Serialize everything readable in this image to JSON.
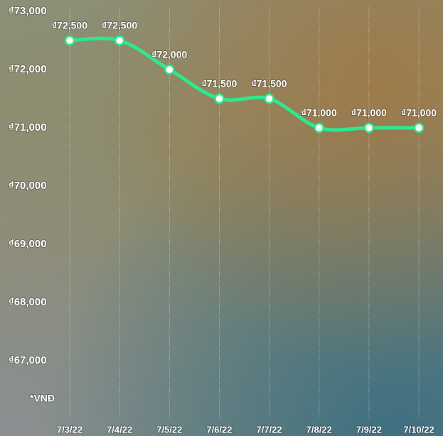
{
  "chart_data": {
    "type": "line",
    "categories": [
      "7/3/22",
      "7/4/22",
      "7/5/22",
      "7/6/22",
      "7/7/22",
      "7/8/22",
      "7/9/22",
      "7/10/22"
    ],
    "values": [
      72500,
      72500,
      72000,
      71500,
      71500,
      71000,
      71000,
      71000
    ],
    "value_labels": [
      "₫72,500",
      "₫72,500",
      "₫72,000",
      "₫71,500",
      "₫71,500",
      "₫71,000",
      "₫71,000",
      "₫71,000"
    ],
    "color": "#2ee88c",
    "ylim": [
      66000,
      73000
    ],
    "yticks": [
      {
        "value": 67000,
        "label": "₫67,000"
      },
      {
        "value": 68000,
        "label": "₫68,000"
      },
      {
        "value": 69000,
        "label": "₫69,000"
      },
      {
        "value": 70000,
        "label": "₫70,000"
      },
      {
        "value": 71000,
        "label": "₫71,000"
      },
      {
        "value": 72000,
        "label": "₫72,000"
      },
      {
        "value": 73000,
        "label": "₫73,000"
      }
    ],
    "annotation": "*VNĐ",
    "xgrid": true
  }
}
